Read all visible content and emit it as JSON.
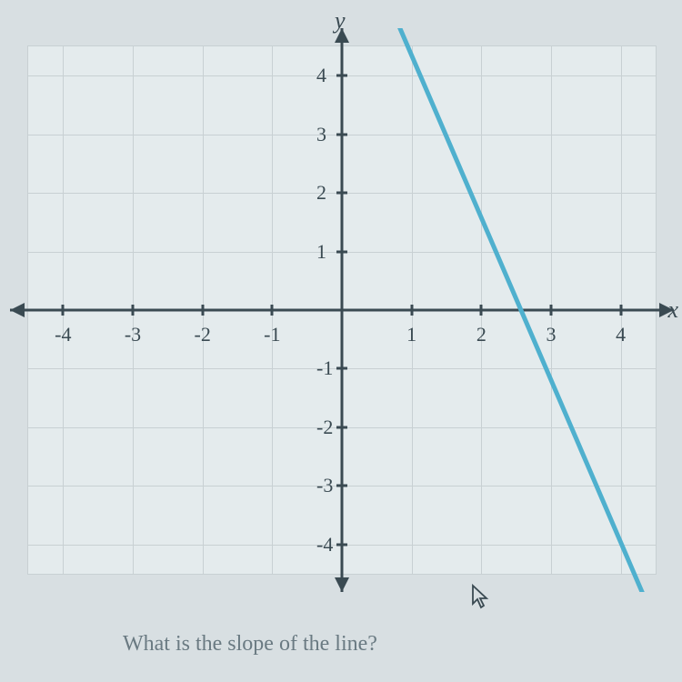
{
  "chart": {
    "type": "line",
    "xlim": [
      -4.5,
      4.5
    ],
    "ylim": [
      -4.5,
      4.5
    ],
    "xtick_values": [
      -4,
      -3,
      -2,
      -1,
      1,
      2,
      3,
      4
    ],
    "ytick_values": [
      -4,
      -3,
      -2,
      -1,
      1,
      2,
      3,
      4
    ],
    "xtick_labels": [
      "-4",
      "-3",
      "-2",
      "-1",
      "1",
      "2",
      "3",
      "4"
    ],
    "ytick_labels": [
      "-4",
      "-3",
      "-2",
      "-1",
      "1",
      "2",
      "3",
      "4"
    ],
    "xlabel": "x",
    "ylabel": "y",
    "label_fontsize": 26,
    "tick_fontsize": 22,
    "axis_color": "#3a4a52",
    "axis_width": 3,
    "grid_color": "#c8d0d3",
    "background_color": "#e4ebed",
    "page_background": "#d8dfe2",
    "line": {
      "points": [
        {
          "x": 0.8,
          "y": 4.9
        },
        {
          "x": 4.5,
          "y": -5.35
        }
      ],
      "color": "#4fb0ce",
      "width": 5,
      "slope_approx": -3
    }
  },
  "question": "What is the slope of the line?",
  "question_color": "#6a7a82",
  "question_fontsize": 24
}
